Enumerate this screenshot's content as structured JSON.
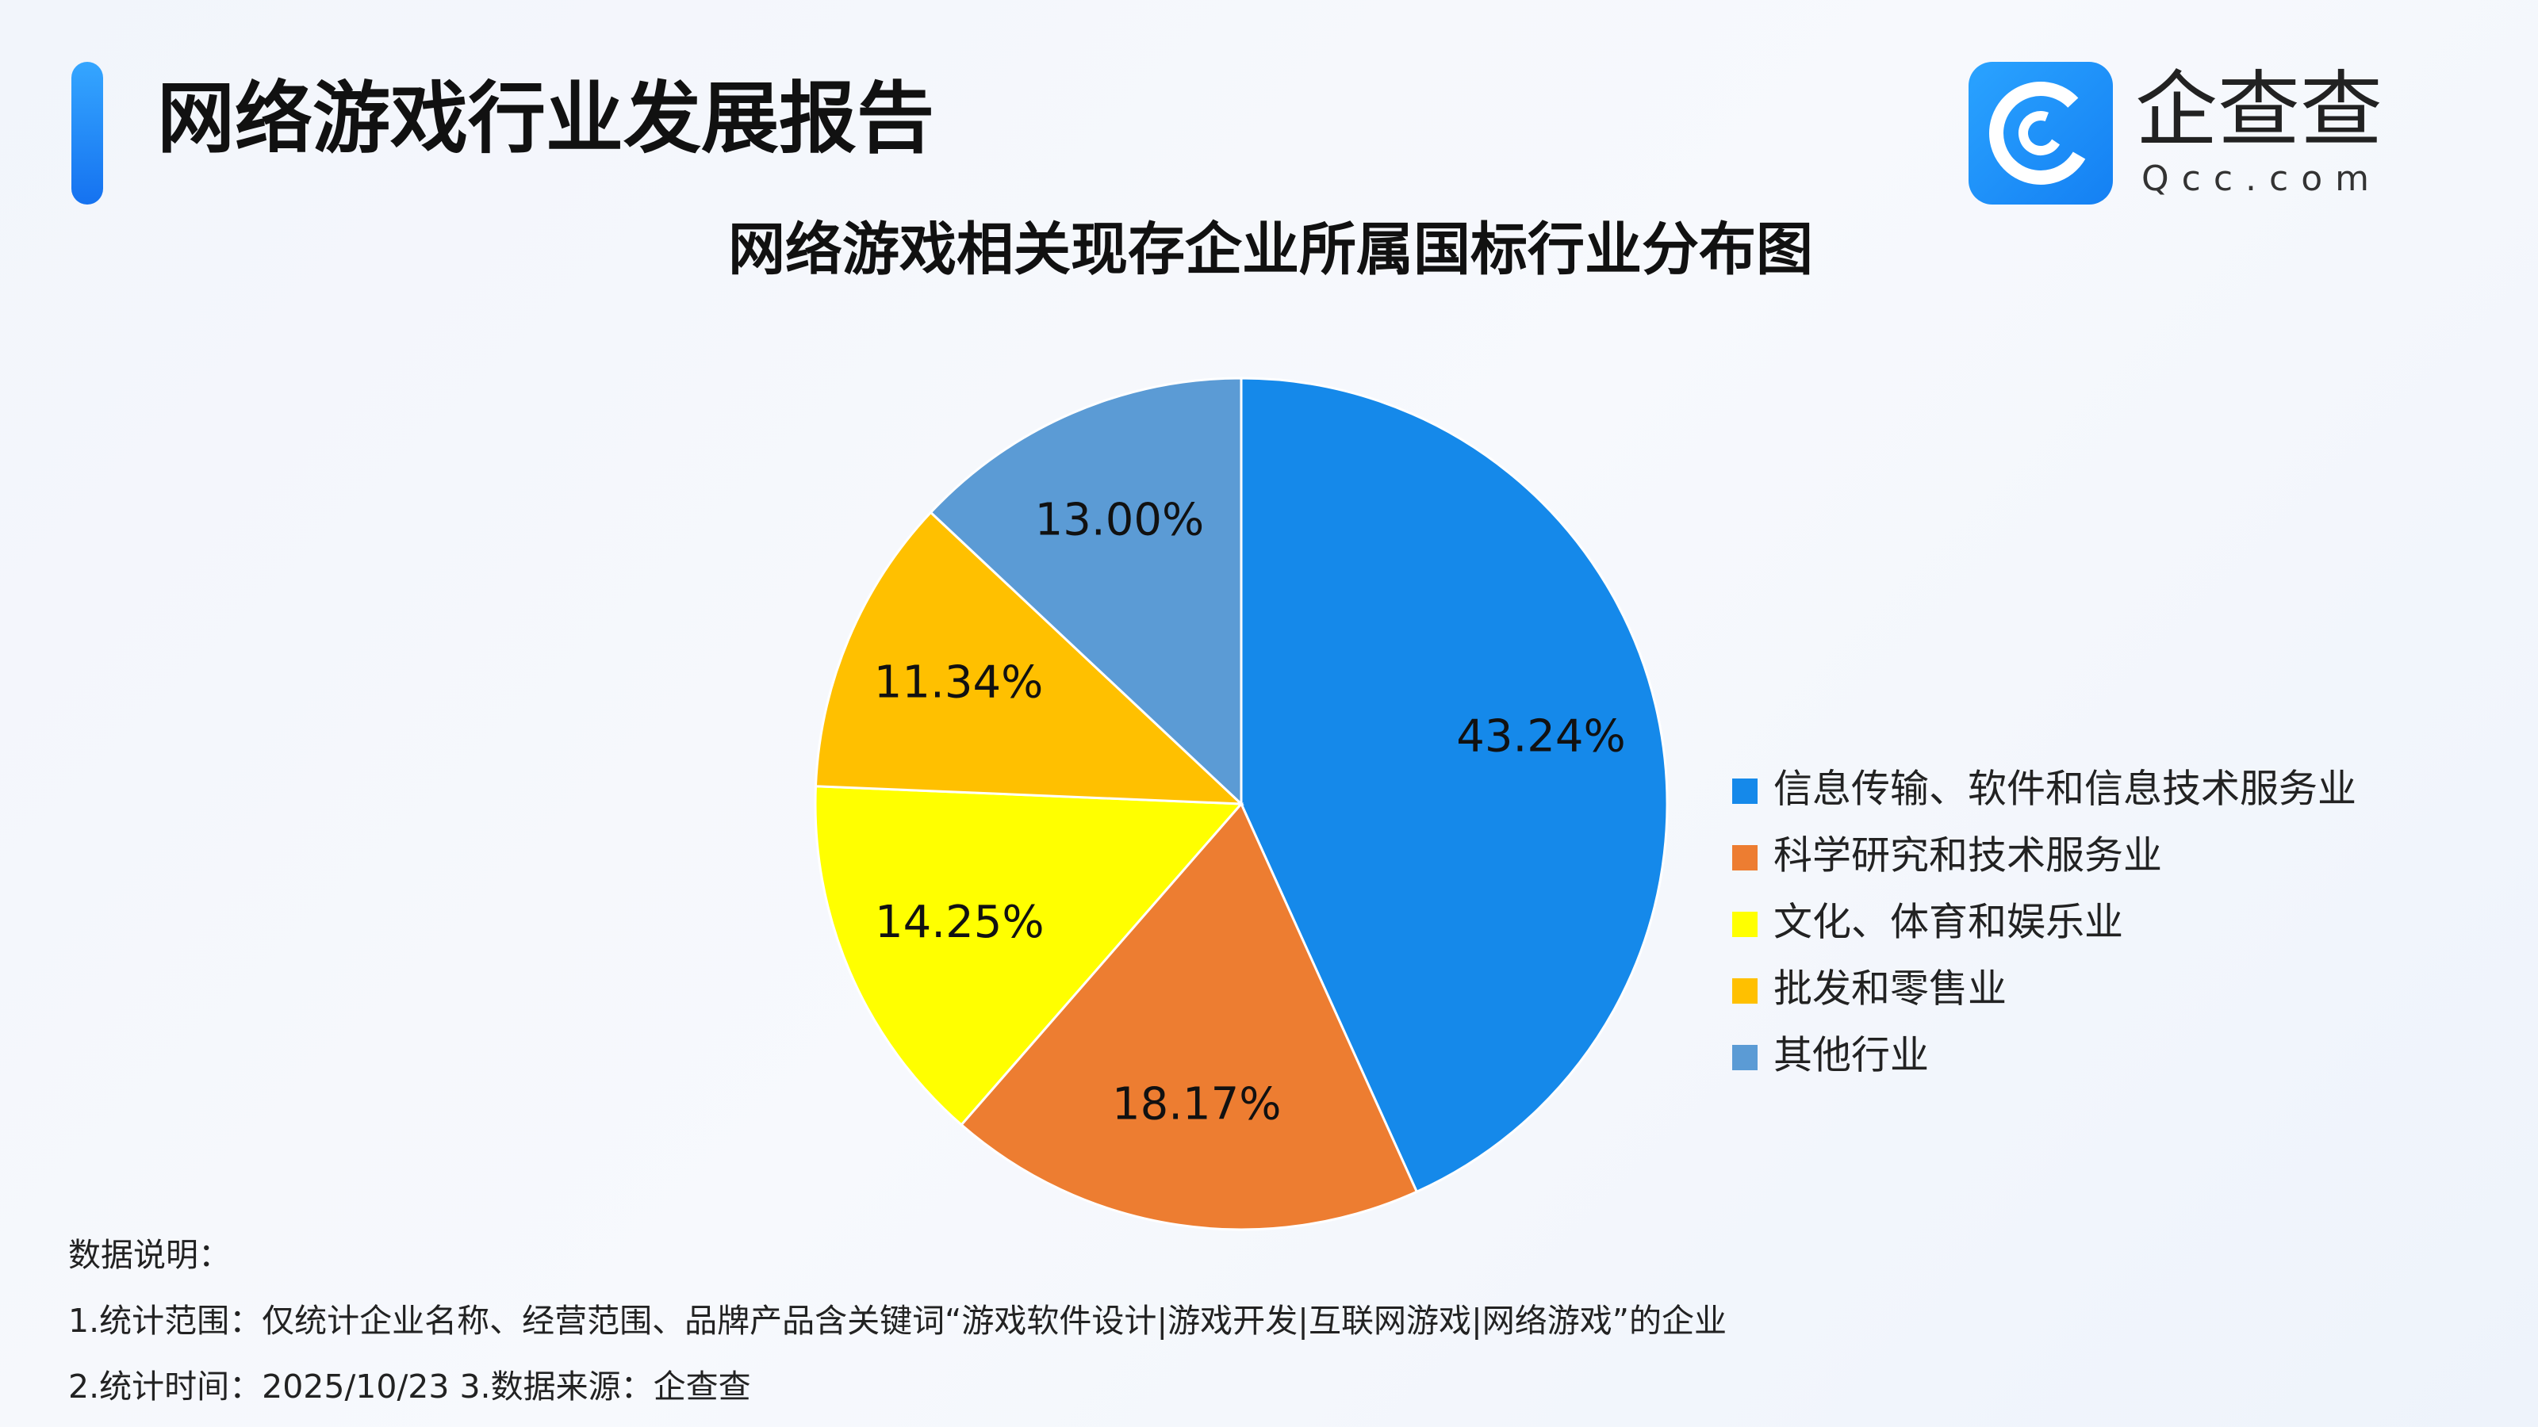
{
  "header": {
    "title": "网络游戏行业发展报告",
    "logo_text": "企查查",
    "logo_sub": "Qcc.com"
  },
  "chart_data": {
    "type": "pie",
    "title": "网络游戏相关现存企业所属国标行业分布图",
    "categories": [
      "信息传输、软件和信息技术服务业",
      "科学研究和技术服务业",
      "文化、体育和娱乐业",
      "批发和零售业",
      "其他行业"
    ],
    "values": [
      43.24,
      18.17,
      14.25,
      11.34,
      13.0
    ],
    "value_labels": [
      "43.24%",
      "18.17%",
      "14.25%",
      "11.34%",
      "13.00%"
    ],
    "colors": [
      "#1589ea",
      "#ed7d31",
      "#ffff00",
      "#ffc000",
      "#5b9bd5"
    ]
  },
  "notes": [
    "数据说明：",
    "1.统计范围：仅统计企业名称、经营范围、品牌产品含关键词“游戏软件设计|游戏开发|互联网游戏|网络游戏”的企业",
    " 2.统计时间：2025/10/23 3.数据来源：企查查"
  ]
}
